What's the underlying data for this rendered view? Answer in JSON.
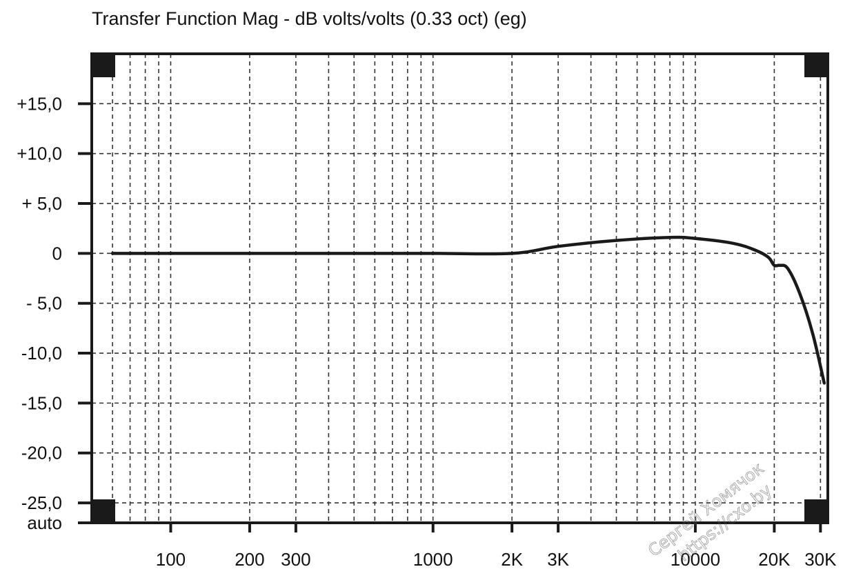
{
  "chart_data": {
    "type": "line",
    "title": "Transfer Function Mag - dB volts/volts (0.33 oct) (eg)",
    "xlabel": "",
    "ylabel": "",
    "x_scale": "log",
    "xlim": [
      50,
      32000
    ],
    "ylim": [
      -27,
      20
    ],
    "grid": true,
    "x_ticks": [
      {
        "value": 100,
        "label": "100"
      },
      {
        "value": 200,
        "label": "200"
      },
      {
        "value": 300,
        "label": "300"
      },
      {
        "value": 1000,
        "label": "1000"
      },
      {
        "value": 2000,
        "label": "2K"
      },
      {
        "value": 3000,
        "label": "3K"
      },
      {
        "value": 10000,
        "label": "10000"
      },
      {
        "value": 20000,
        "label": "20K"
      },
      {
        "value": 30000,
        "label": "30K"
      }
    ],
    "y_ticks": [
      {
        "value": 15,
        "label": "+15,0"
      },
      {
        "value": 10,
        "label": "+10,0"
      },
      {
        "value": 5,
        "label": "+ 5,0"
      },
      {
        "value": 0,
        "label": "0"
      },
      {
        "value": -5,
        "label": "- 5,0"
      },
      {
        "value": -10,
        "label": "-10,0"
      },
      {
        "value": -15,
        "label": "-15,0"
      },
      {
        "value": -20,
        "label": "-20,0"
      },
      {
        "value": -25,
        "label": "-25,0"
      }
    ],
    "y_bottom_label": "auto",
    "series": [
      {
        "x": [
          60,
          100,
          200,
          500,
          1000,
          2000,
          3000,
          5000,
          8000,
          10000,
          14000,
          17000,
          19000,
          20000,
          21000,
          22500,
          25000,
          28000,
          31000
        ],
        "y": [
          0,
          0,
          0,
          0,
          0,
          0,
          0.7,
          1.3,
          1.6,
          1.5,
          1.0,
          0.3,
          -0.4,
          -1.2,
          -1.2,
          -1.5,
          -4,
          -8,
          -13
        ]
      }
    ],
    "colors": {
      "line": "#1a1a1a",
      "grid": "#333333",
      "frame": "#1a1a1a"
    }
  },
  "watermark": {
    "line1": "Сергей Хомячок",
    "line2": "https://cxo.by"
  }
}
